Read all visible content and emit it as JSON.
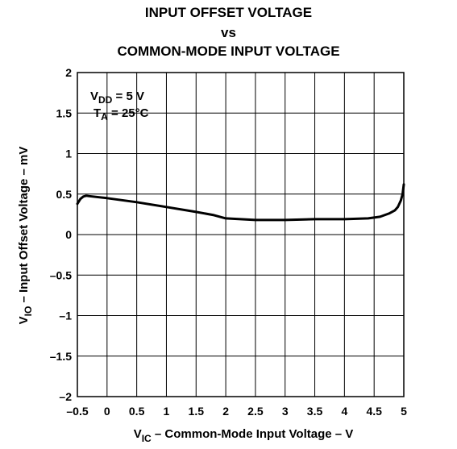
{
  "chart_data": {
    "type": "line",
    "title_lines": [
      "INPUT OFFSET VOLTAGE",
      "vs",
      "COMMON-MODE INPUT VOLTAGE"
    ],
    "xlabel": {
      "main": "V",
      "sub": "IC",
      "rest": " – Common-Mode Input Voltage – V"
    },
    "ylabel": {
      "main": "V",
      "sub": "IO",
      "rest": " – Input Offset Voltage – mV"
    },
    "xlim": [
      -0.5,
      5
    ],
    "ylim": [
      -2,
      2
    ],
    "xticks": [
      -0.5,
      0,
      0.5,
      1,
      1.5,
      2,
      2.5,
      3,
      3.5,
      4,
      4.5,
      5
    ],
    "xtick_labels": [
      "–0.5",
      "0",
      "0.5",
      "1",
      "1.5",
      "2",
      "2.5",
      "3",
      "3.5",
      "4",
      "4.5",
      "5"
    ],
    "yticks": [
      2,
      1.5,
      1,
      0.5,
      0,
      -0.5,
      -1,
      -1.5,
      -2
    ],
    "ytick_labels": [
      "2",
      "1.5",
      "1",
      "0.5",
      "0",
      "–0.5",
      "–1",
      "–1.5",
      "–2"
    ],
    "grid": true,
    "annotations": [
      {
        "main": "V",
        "sub": "DD",
        "rest": " = 5 V"
      },
      {
        "main": "T",
        "sub": "A",
        "rest": " = 25°C"
      }
    ],
    "series": [
      {
        "x": [
          -0.5,
          -0.45,
          -0.4,
          -0.35,
          -0.3,
          0,
          0.5,
          1,
          1.5,
          1.8,
          2,
          2.5,
          3,
          3.5,
          4,
          4.4,
          4.6,
          4.75,
          4.85,
          4.9,
          4.95,
          4.98,
          5
        ],
        "values": [
          0.38,
          0.44,
          0.47,
          0.48,
          0.475,
          0.45,
          0.4,
          0.34,
          0.28,
          0.24,
          0.2,
          0.18,
          0.18,
          0.19,
          0.19,
          0.2,
          0.22,
          0.26,
          0.3,
          0.34,
          0.42,
          0.5,
          0.62
        ]
      }
    ]
  }
}
